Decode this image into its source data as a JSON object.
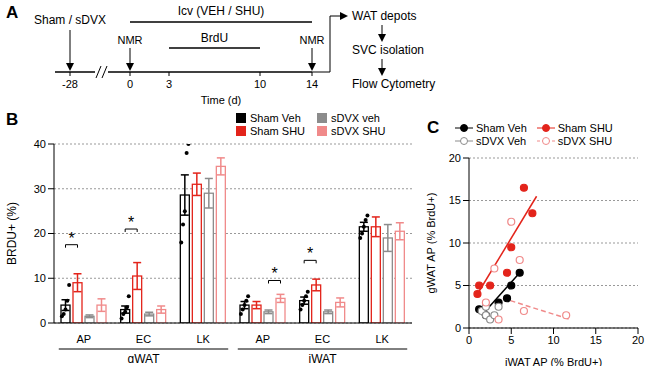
{
  "diagram": {
    "panel_label": "A",
    "start_label": "Sham / sDVX",
    "treatment_label": "Icv (VEH / SHU)",
    "brdu_label": "BrdU",
    "brdu_range": [
      3,
      10
    ],
    "treatment_range": [
      0,
      14
    ],
    "measurement_label": "NMR",
    "measurement_days": [
      0,
      14
    ],
    "time_label": "Time (d)",
    "time_ticks": [
      -28,
      0,
      3,
      10,
      14
    ],
    "steps": [
      "WAT depots",
      "SVC isolation",
      "Flow Cytometry"
    ]
  },
  "chart_data": [
    {
      "panel_label": "B",
      "type": "bar",
      "categories": [
        "AP",
        "EC",
        "LK",
        "AP",
        "EC",
        "LK"
      ],
      "groups": [
        {
          "label": "gWAT",
          "start": 0,
          "end": 2
        },
        {
          "label": "iWAT",
          "start": 3,
          "end": 5
        }
      ],
      "y_label": "BRDU+ (%)",
      "ylim": [
        0,
        40
      ],
      "yticks": [
        0,
        10,
        20,
        30,
        40
      ],
      "grid": true,
      "legend": "top right",
      "series": [
        {
          "name": "Sham Veh",
          "color": "#000000",
          "values": [
            4,
            3,
            28.6,
            4,
            5,
            21.5
          ],
          "errors": [
            1.2,
            0.8,
            4.5,
            0.8,
            0.8,
            1.0
          ],
          "points": [
            [
              1.5,
              2,
              3,
              5,
              8.5
            ],
            [
              1,
              2,
              2.5,
              3.5,
              6
            ],
            [
              18,
              22,
              25,
              38,
              40
            ],
            [
              2,
              3,
              4,
              5,
              6
            ],
            [
              3,
              4,
              5,
              6,
              7
            ],
            [
              19,
              20,
              21.5,
              23,
              24
            ]
          ]
        },
        {
          "name": "Sham SHU",
          "color": "#e3241b",
          "values": [
            9,
            10.5,
            31,
            4,
            8.5,
            21.5
          ],
          "errors": [
            2,
            3,
            2.5,
            0.8,
            1.3,
            2.2
          ]
        },
        {
          "name": "sDVX veh",
          "color": "#8c8c8c",
          "values": [
            1.5,
            2,
            29,
            2.5,
            2.5,
            19
          ],
          "errors": [
            0.3,
            0.4,
            3.3,
            0.4,
            0.4,
            3.0
          ]
        },
        {
          "name": "sDVX SHU",
          "color": "#f08a8a",
          "values": [
            4,
            3,
            35,
            5.5,
            4.6,
            20.5
          ],
          "errors": [
            1.4,
            0.8,
            1.9,
            0.9,
            1.0,
            1.9
          ]
        }
      ],
      "annotations": [
        {
          "text": "*",
          "category": 0,
          "from": "Sham Veh",
          "to": "Sham SHU",
          "y": 17.5
        },
        {
          "text": "*",
          "category": 1,
          "from": "Sham Veh",
          "to": "Sham SHU",
          "y": 21
        },
        {
          "text": "*",
          "category": 3,
          "from": "sDVX veh",
          "to": "sDVX SHU",
          "y": 9.5
        },
        {
          "text": "*",
          "category": 4,
          "from": "Sham Veh",
          "to": "Sham SHU",
          "y": 14
        }
      ]
    },
    {
      "panel_label": "C",
      "type": "scatter",
      "x_label": "iWAT AP (% BrdU+)",
      "y_label": "gWAT AP (% BrdU+)",
      "xlim": [
        0,
        20
      ],
      "ylim": [
        0,
        20
      ],
      "xticks": [
        0,
        5,
        10,
        15,
        20
      ],
      "yticks": [
        0,
        5,
        10,
        15,
        20
      ],
      "grid": true,
      "legend": "top",
      "series": [
        {
          "name": "Sham Veh",
          "color": "#000000",
          "marker": "filled",
          "line_style": "solid",
          "points": [
            [
              1.2,
              2.2
            ],
            [
              2,
              1.5
            ],
            [
              3.5,
              3
            ],
            [
              4.5,
              3.5
            ],
            [
              5,
              5
            ],
            [
              6,
              6.5
            ]
          ],
          "fit": [
            [
              1.5,
              1.5
            ],
            [
              6,
              6.5
            ]
          ]
        },
        {
          "name": "Sham SHU",
          "color": "#e3241b",
          "marker": "filled",
          "line_style": "solid",
          "points": [
            [
              1,
              4
            ],
            [
              1.2,
              5
            ],
            [
              2.5,
              5
            ],
            [
              4.5,
              6.5
            ],
            [
              5,
              9.5
            ],
            [
              6.5,
              16.5
            ],
            [
              7.5,
              13.5
            ]
          ],
          "fit": [
            [
              1,
              4
            ],
            [
              8,
              15.5
            ]
          ]
        },
        {
          "name": "sDVX Veh",
          "color": "#8c8c8c",
          "marker": "open",
          "points": [
            [
              1.5,
              2
            ],
            [
              2,
              1.5
            ],
            [
              2.5,
              1
            ],
            [
              3,
              1.5
            ],
            [
              3.5,
              2.5
            ],
            [
              2,
              2.5
            ]
          ]
        },
        {
          "name": "sDVX SHU",
          "color": "#f08a8a",
          "marker": "open",
          "line_style": "dashed",
          "points": [
            [
              2,
              3
            ],
            [
              3,
              7
            ],
            [
              5,
              12.5
            ],
            [
              6,
              8
            ],
            [
              6.5,
              2
            ],
            [
              11.5,
              1.5
            ],
            [
              3.5,
              1
            ]
          ],
          "fit": [
            [
              4,
              3.5
            ],
            [
              12,
              1
            ]
          ]
        }
      ]
    }
  ]
}
